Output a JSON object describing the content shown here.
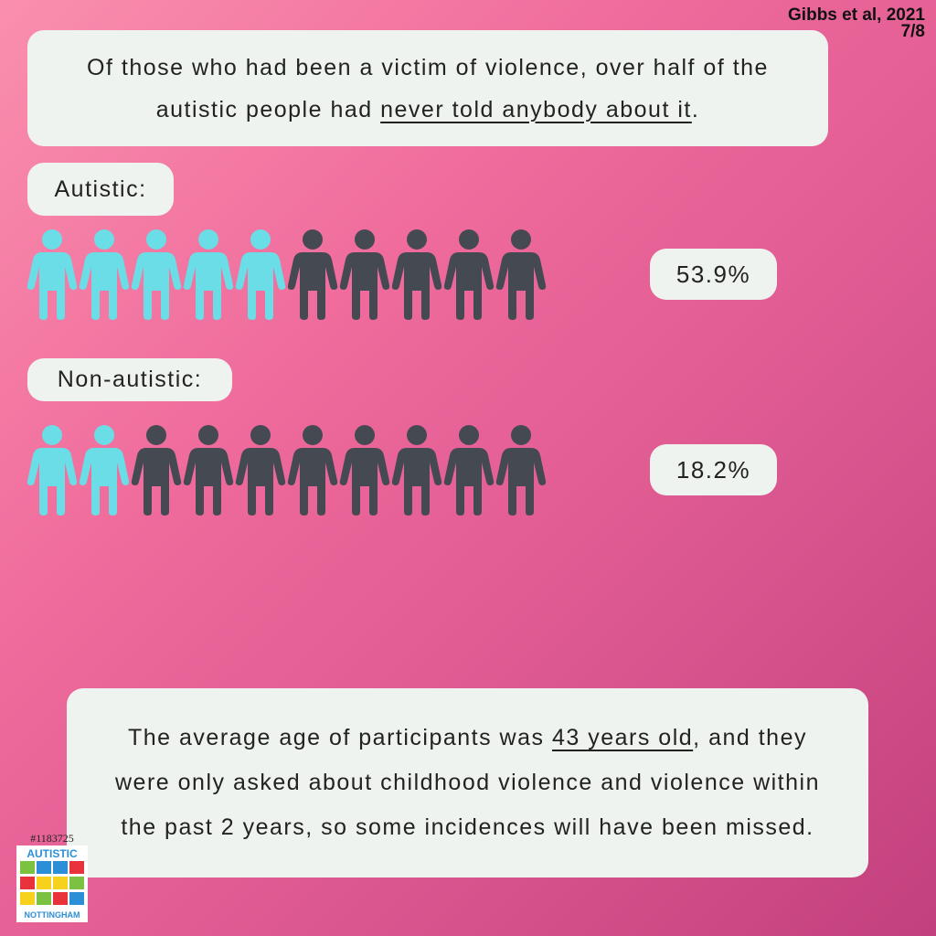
{
  "source": {
    "citation": "Gibbs et al, 2021",
    "page": "7/8"
  },
  "intro": {
    "before": "Of those who had been a victim of violence, over half of the autistic people had ",
    "underlined": "never told anybody about it",
    "after": "."
  },
  "groups": [
    {
      "label": "Autistic:",
      "value_label": "53.9%",
      "icons_highlighted": 5,
      "icons_total": 10
    },
    {
      "label": "Non-autistic:",
      "value_label": "18.2%",
      "icons_highlighted": 2,
      "icons_total": 10
    }
  ],
  "footer": {
    "before": "The average age of participants was ",
    "underlined": "43 years old",
    "after": ", and they were only asked about childhood violence and violence within the past 2 years, so some incidences will have been missed."
  },
  "logo": {
    "id": "#1183725",
    "top": "AUTISTIC",
    "bottom": "NOTTINGHAM"
  },
  "colors": {
    "highlight": "#6adde6",
    "base": "#454a52"
  }
}
